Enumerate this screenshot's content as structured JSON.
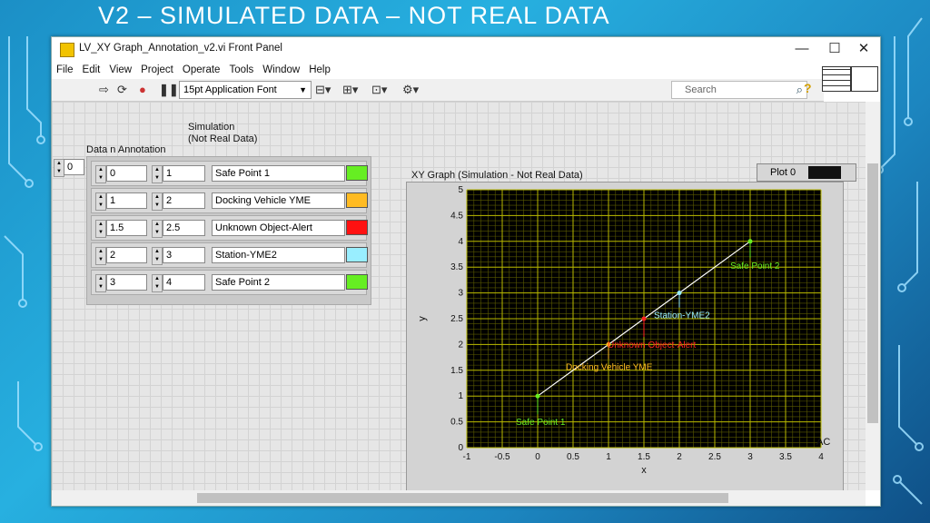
{
  "slide": {
    "title": "V2 – SIMULATED DATA – NOT REAL DATA"
  },
  "window": {
    "title": "LV_XY Graph_Annotation_v2.vi Front Panel",
    "controls": [
      "—",
      "☐",
      "✕"
    ],
    "menu": [
      "File",
      "Edit",
      "View",
      "Project",
      "Operate",
      "Tools",
      "Window",
      "Help"
    ],
    "font_select": "15pt Application Font",
    "search_placeholder": "Search"
  },
  "panel": {
    "simulation_label_1": "Simulation",
    "simulation_label_2": "(Not Real Data)",
    "array_label": "Data n Annotation",
    "array_index": "0",
    "rows": [
      {
        "x": "0",
        "y": "1",
        "text": "Safe Point 1",
        "color": "#66ee22"
      },
      {
        "x": "1",
        "y": "2",
        "text": "Docking  Vehicle YME",
        "color": "#ffbb22"
      },
      {
        "x": "1.5",
        "y": "2.5",
        "text": "Unknown Object-Alert",
        "color": "#ff1111"
      },
      {
        "x": "2",
        "y": "3",
        "text": "Station-YME2",
        "color": "#99eeff"
      },
      {
        "x": "3",
        "y": "4",
        "text": "Safe Point 2",
        "color": "#66ee22"
      }
    ],
    "corner_initials": "AC"
  },
  "graph": {
    "title": "XY Graph (Simulation - Not Real Data)",
    "legend_label": "Plot 0"
  },
  "chart_data": {
    "type": "scatter",
    "title": "XY Graph (Simulation - Not Real Data)",
    "xlabel": "x",
    "ylabel": "y",
    "xlim": [
      -1,
      4
    ],
    "ylim": [
      0,
      5
    ],
    "xticks": [
      "-1",
      "-0.5",
      "0",
      "0.5",
      "1",
      "1.5",
      "2",
      "2.5",
      "3",
      "3.5",
      "4"
    ],
    "yticks": [
      "0",
      "0.5",
      "1",
      "1.5",
      "2",
      "2.5",
      "3",
      "3.5",
      "4",
      "4.5",
      "5"
    ],
    "grid": true,
    "background": "#000000",
    "grid_color": "#b8b800",
    "series": [
      {
        "name": "Plot 0",
        "color": "#ffffff",
        "x": [
          0,
          1,
          1.5,
          2,
          3
        ],
        "y": [
          1,
          2,
          2.5,
          3,
          4
        ]
      }
    ],
    "annotations": [
      {
        "x": 0,
        "y": 1,
        "text": "Safe Point 1",
        "color": "#66ee22",
        "dx": -24,
        "dy": 32
      },
      {
        "x": 1,
        "y": 2,
        "text": "Docking  Vehicle YME",
        "color": "#ffbb22",
        "dx": -47,
        "dy": 28
      },
      {
        "x": 1.5,
        "y": 2.5,
        "text": "Unknown Object-Alert",
        "color": "#ff2222",
        "dx": -40,
        "dy": 32
      },
      {
        "x": 2,
        "y": 3,
        "text": "Station-YME2",
        "color": "#99eeff",
        "dx": -28,
        "dy": 28
      },
      {
        "x": 3,
        "y": 4,
        "text": "Safe Point 2",
        "color": "#66ee22",
        "dx": -22,
        "dy": 30
      }
    ]
  }
}
